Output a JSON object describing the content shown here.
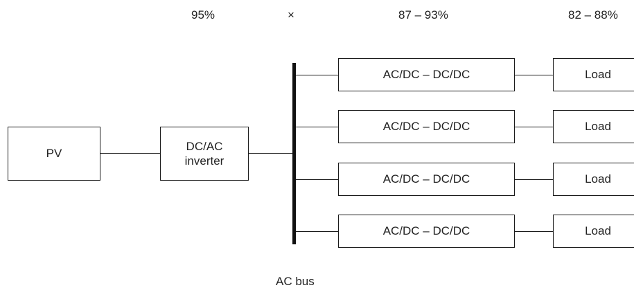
{
  "efficiencies": {
    "inverter": "95%",
    "multiply_sign": "×",
    "converter": "87 – 93%",
    "overall": "82 – 88%"
  },
  "blocks": {
    "pv": "PV",
    "inverter": "DC/AC\ninverter",
    "converter": "AC/DC – DC/DC",
    "load": "Load"
  },
  "bus_label": "AC bus",
  "branches": [
    {
      "converter": "AC/DC – DC/DC",
      "load": "Load"
    },
    {
      "converter": "AC/DC – DC/DC",
      "load": "Load"
    },
    {
      "converter": "AC/DC – DC/DC",
      "load": "Load"
    },
    {
      "converter": "AC/DC – DC/DC",
      "load": "Load"
    }
  ]
}
